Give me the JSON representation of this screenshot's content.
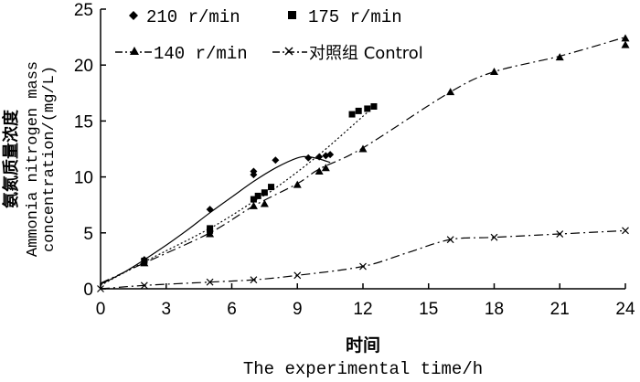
{
  "chart_data": {
    "type": "line",
    "xlabel_cn": "时间",
    "xlabel_en": "The experimental time/h",
    "ylabel_cn": "氨氮质量浓度",
    "ylabel_en_line1": "Ammonia nitrogen mass",
    "ylabel_en_line2": "concentration/(mg/L)",
    "xlim": [
      0,
      24
    ],
    "ylim": [
      0,
      25
    ],
    "xticks": [
      0,
      3,
      6,
      9,
      12,
      15,
      18,
      21,
      24
    ],
    "yticks": [
      0,
      5,
      10,
      15,
      20,
      25
    ],
    "xtick_labels": [
      "0",
      "3",
      "6",
      "9",
      "12",
      "15",
      "18",
      "21",
      "24"
    ],
    "ytick_labels": [
      "0",
      "5",
      "10",
      "15",
      "20",
      "25"
    ],
    "grid": false,
    "legend_position": "top-left",
    "series": [
      {
        "name": "210 r/min",
        "marker": "diamond",
        "line_style": "solid",
        "color": "#000000",
        "x": [
          2,
          2,
          5,
          7,
          7,
          8,
          9.5,
          10,
          10.3,
          10.5
        ],
        "y": [
          2.6,
          2.4,
          7.1,
          10.2,
          10.5,
          11.5,
          11.7,
          11.8,
          11.9,
          12.0
        ],
        "fit_x": [
          0,
          1,
          2,
          3,
          4,
          5,
          6,
          7,
          8,
          9,
          9.5,
          10,
          10.5
        ],
        "fit_y": [
          0.4,
          1.4,
          2.6,
          3.9,
          5.3,
          6.8,
          8.2,
          9.6,
          10.8,
          11.7,
          11.8,
          11.6,
          11.3
        ]
      },
      {
        "name": "175 r/min",
        "marker": "square",
        "line_style": "dotted",
        "color": "#000000",
        "x": [
          2,
          5,
          5,
          7,
          7.2,
          7.5,
          7.8,
          11.5,
          11.8,
          12.2,
          12.5
        ],
        "y": [
          2.5,
          5.2,
          5.4,
          8.0,
          8.3,
          8.6,
          9.1,
          15.6,
          15.9,
          16.1,
          16.3
        ],
        "fit_x": [
          0,
          2,
          5,
          7,
          8,
          10,
          12.5
        ],
        "fit_y": [
          0.3,
          2.4,
          5.4,
          7.8,
          9.0,
          12.0,
          16.3
        ]
      },
      {
        "name": "140 r/min",
        "marker": "triangle",
        "line_style": "dash-dot",
        "color": "#000000",
        "x": [
          2,
          5,
          7,
          7.5,
          9,
          10,
          10.3,
          12,
          16,
          18,
          21,
          24,
          24
        ],
        "y": [
          2.3,
          4.9,
          7.4,
          7.6,
          9.3,
          10.5,
          10.8,
          12.5,
          17.6,
          19.4,
          20.7,
          22.4,
          21.8
        ],
        "fit_x": [
          0,
          2,
          5,
          7,
          9,
          10,
          12,
          16,
          18,
          21,
          24
        ],
        "fit_y": [
          0.5,
          2.3,
          5.0,
          7.4,
          9.4,
          10.7,
          12.6,
          17.6,
          19.4,
          20.8,
          22.5
        ]
      },
      {
        "name": "对照组 Control",
        "marker": "x",
        "line_style": "dash-dot",
        "color": "#000000",
        "x": [
          0,
          2,
          5,
          7,
          9,
          12,
          16,
          18,
          21,
          24
        ],
        "y": [
          0,
          0.3,
          0.6,
          0.8,
          1.2,
          2.0,
          4.4,
          4.6,
          4.9,
          5.2
        ],
        "fit_x": [
          0,
          2,
          5,
          7,
          9,
          12,
          14,
          16,
          18,
          21,
          24
        ],
        "fit_y": [
          0,
          0.3,
          0.6,
          0.8,
          1.2,
          2.0,
          3.2,
          4.4,
          4.6,
          4.9,
          5.2
        ]
      }
    ]
  }
}
